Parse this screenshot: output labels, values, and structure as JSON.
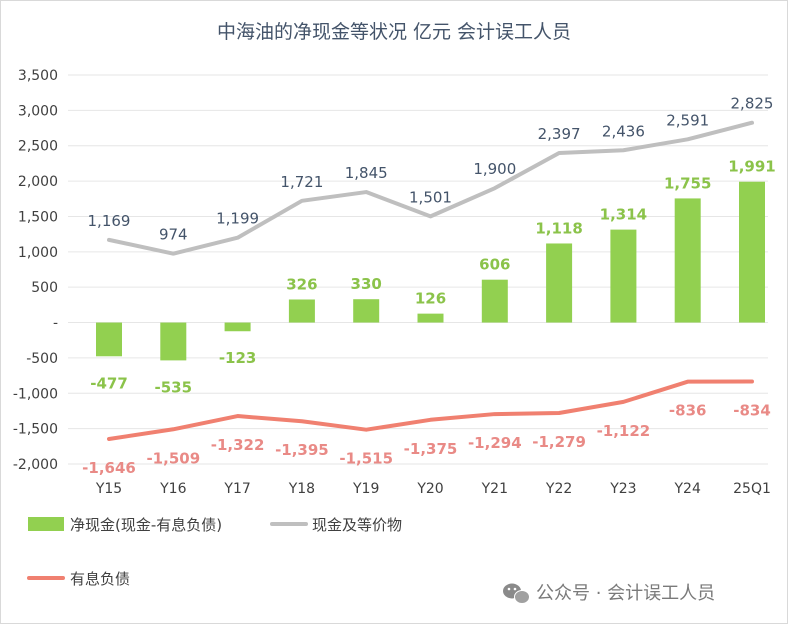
{
  "chart_data": {
    "type": "bar",
    "title": "中海油的净现金等状况 亿元 会计误工人员",
    "categories": [
      "Y15",
      "Y16",
      "Y17",
      "Y18",
      "Y19",
      "Y20",
      "Y21",
      "Y22",
      "Y23",
      "Y24",
      "25Q1"
    ],
    "ylim": [
      -2000,
      3500
    ],
    "yticks": [
      -2000,
      -1500,
      -1000,
      -500,
      0,
      500,
      1000,
      1500,
      2000,
      2500,
      3000,
      3500
    ],
    "ytick_labels": [
      "-2,000",
      "-1,500",
      "-1,000",
      "-500",
      "-",
      "500",
      "1,000",
      "1,500",
      "2,000",
      "2,500",
      "3,000",
      "3,500"
    ],
    "grid": true,
    "legend_position": "bottom",
    "series": [
      {
        "name": "净现金(现金-有息负债)",
        "kind": "bar",
        "color": "#92d050",
        "values": [
          -477,
          -535,
          -123,
          326,
          330,
          126,
          606,
          1118,
          1314,
          1755,
          1991
        ],
        "labels": [
          "-477",
          "-535",
          "-123",
          "326",
          "330",
          "126",
          "606",
          "1,118",
          "1,314",
          "1,755",
          "1,991"
        ]
      },
      {
        "name": "现金及等价物",
        "kind": "line",
        "color": "#bfbfbf",
        "values": [
          1169,
          974,
          1199,
          1721,
          1845,
          1501,
          1900,
          2397,
          2436,
          2591,
          2825
        ],
        "labels": [
          "1,169",
          "974",
          "1,199",
          "1,721",
          "1,845",
          "1,501",
          "1,900",
          "2,397",
          "2,436",
          "2,591",
          "2,825"
        ]
      },
      {
        "name": "有息负债",
        "kind": "line",
        "color": "#f08070",
        "values": [
          -1646,
          -1509,
          -1322,
          -1395,
          -1515,
          -1375,
          -1294,
          -1279,
          -1122,
          -836,
          -834
        ],
        "labels": [
          "-1,646",
          "-1,509",
          "-1,322",
          "-1,395",
          "-1,515",
          "-1,375",
          "-1,294",
          "-1,279",
          "-1,122",
          "-836",
          "-834"
        ]
      }
    ]
  },
  "watermark": {
    "text": "公众号 · 会计误工人员",
    "icon": "wechat-icon"
  }
}
